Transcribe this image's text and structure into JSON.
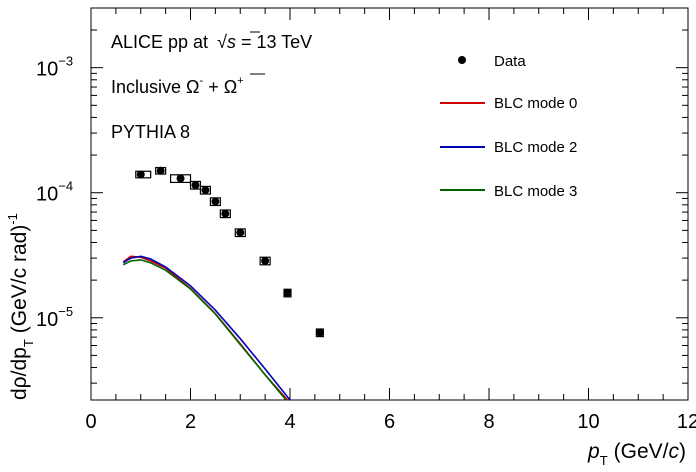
{
  "chart_data": {
    "type": "line",
    "xlabel": "pT (GeV/c)",
    "ylabel": "dρ/dpT (GeV/c rad)-1",
    "xlim": [
      0,
      12
    ],
    "ylim": [
      2.2e-06,
      0.003
    ],
    "yscale": "log",
    "grid": false,
    "legend_position": "top-right",
    "x_ticks": [
      0,
      2,
      4,
      6,
      8,
      10,
      12
    ],
    "x_tick_labels": [
      "0",
      "2",
      "4",
      "6",
      "8",
      "10",
      "12"
    ],
    "y_ticks": [
      1e-05,
      0.0001,
      0.001
    ],
    "y_tick_labels": [
      {
        "base": "10",
        "exp": "−5"
      },
      {
        "base": "10",
        "exp": "−4"
      },
      {
        "base": "10",
        "exp": "−3"
      }
    ],
    "annotations": {
      "collision_base": "ALICE pp at ",
      "sqrt_s": "s",
      "energy": " = 13 TeV",
      "species_base": "Inclusive ",
      "omega": "Ω",
      "omega_minus": "-",
      "plus": " + ",
      "omegabar": "Ω",
      "omegabar_plus": "+",
      "generator": "PYTHIA 8"
    },
    "axis_labels": {
      "y_main": "dρ/dp",
      "y_sub": "T",
      "y_unit": "(GeV/c rad)",
      "y_exp": "-1",
      "x_main": "p",
      "x_sub": "T",
      "x_unit": "(GeV/",
      "x_unit_c": "c",
      "x_unit_end": ")"
    },
    "data": {
      "name": "Data",
      "points": [
        {
          "x": 1.0,
          "xlow": 0.9,
          "xhigh": 1.2,
          "y": 0.00014,
          "syst": 0.06
        },
        {
          "x": 1.4,
          "xlow": 1.3,
          "xhigh": 1.5,
          "y": 0.00015,
          "syst": 0.06
        },
        {
          "x": 1.8,
          "xlow": 1.6,
          "xhigh": 2.0,
          "y": 0.00013,
          "syst": 0.07
        },
        {
          "x": 2.1,
          "xlow": 2.0,
          "xhigh": 2.2,
          "y": 0.000115,
          "syst": 0.07
        },
        {
          "x": 2.3,
          "xlow": 2.2,
          "xhigh": 2.4,
          "y": 0.000105,
          "syst": 0.07
        },
        {
          "x": 2.5,
          "xlow": 2.4,
          "xhigh": 2.6,
          "y": 8.5e-05,
          "syst": 0.07
        },
        {
          "x": 2.7,
          "xlow": 2.6,
          "xhigh": 2.8,
          "y": 6.8e-05,
          "syst": 0.07
        },
        {
          "x": 3.0,
          "xlow": 2.9,
          "xhigh": 3.1,
          "y": 4.8e-05,
          "syst": 0.07
        },
        {
          "x": 3.5,
          "xlow": 3.4,
          "xhigh": 3.6,
          "y": 2.85e-05,
          "syst": 0.07
        },
        {
          "x": 3.95,
          "xlow": 3.88,
          "xhigh": 4.02,
          "y": 1.58e-05,
          "syst": 0.07
        },
        {
          "x": 4.6,
          "xlow": 4.53,
          "xhigh": 4.67,
          "y": 7.6e-06,
          "syst": 0.07
        }
      ]
    },
    "series": [
      {
        "name": "BLC mode 0",
        "color": "#cc0000",
        "x": [
          0.65,
          0.8,
          1.0,
          1.2,
          1.5,
          2.0,
          2.5,
          3.0,
          3.5,
          3.95
        ],
        "y": [
          2.8e-05,
          3.1e-05,
          3.05e-05,
          2.85e-05,
          2.5e-05,
          1.72e-05,
          1.08e-05,
          6.2e-06,
          3.5e-06,
          2.2e-06
        ]
      },
      {
        "name": "BLC mode 2",
        "color": "#0000bb",
        "x": [
          0.65,
          0.8,
          1.0,
          1.2,
          1.5,
          2.0,
          2.5,
          3.0,
          3.5,
          4.0
        ],
        "y": [
          2.75e-05,
          3e-05,
          3.1e-05,
          2.95e-05,
          2.55e-05,
          1.8e-05,
          1.15e-05,
          6.8e-06,
          3.9e-06,
          2.2e-06
        ]
      },
      {
        "name": "BLC mode 3",
        "color": "#006600",
        "x": [
          0.65,
          0.8,
          1.0,
          1.2,
          1.5,
          2.0,
          2.5,
          3.0,
          3.5,
          3.92
        ],
        "y": [
          2.65e-05,
          2.85e-05,
          2.9e-05,
          2.75e-05,
          2.4e-05,
          1.7e-05,
          1.07e-05,
          6.1e-06,
          3.5e-06,
          2.2e-06
        ]
      }
    ]
  }
}
